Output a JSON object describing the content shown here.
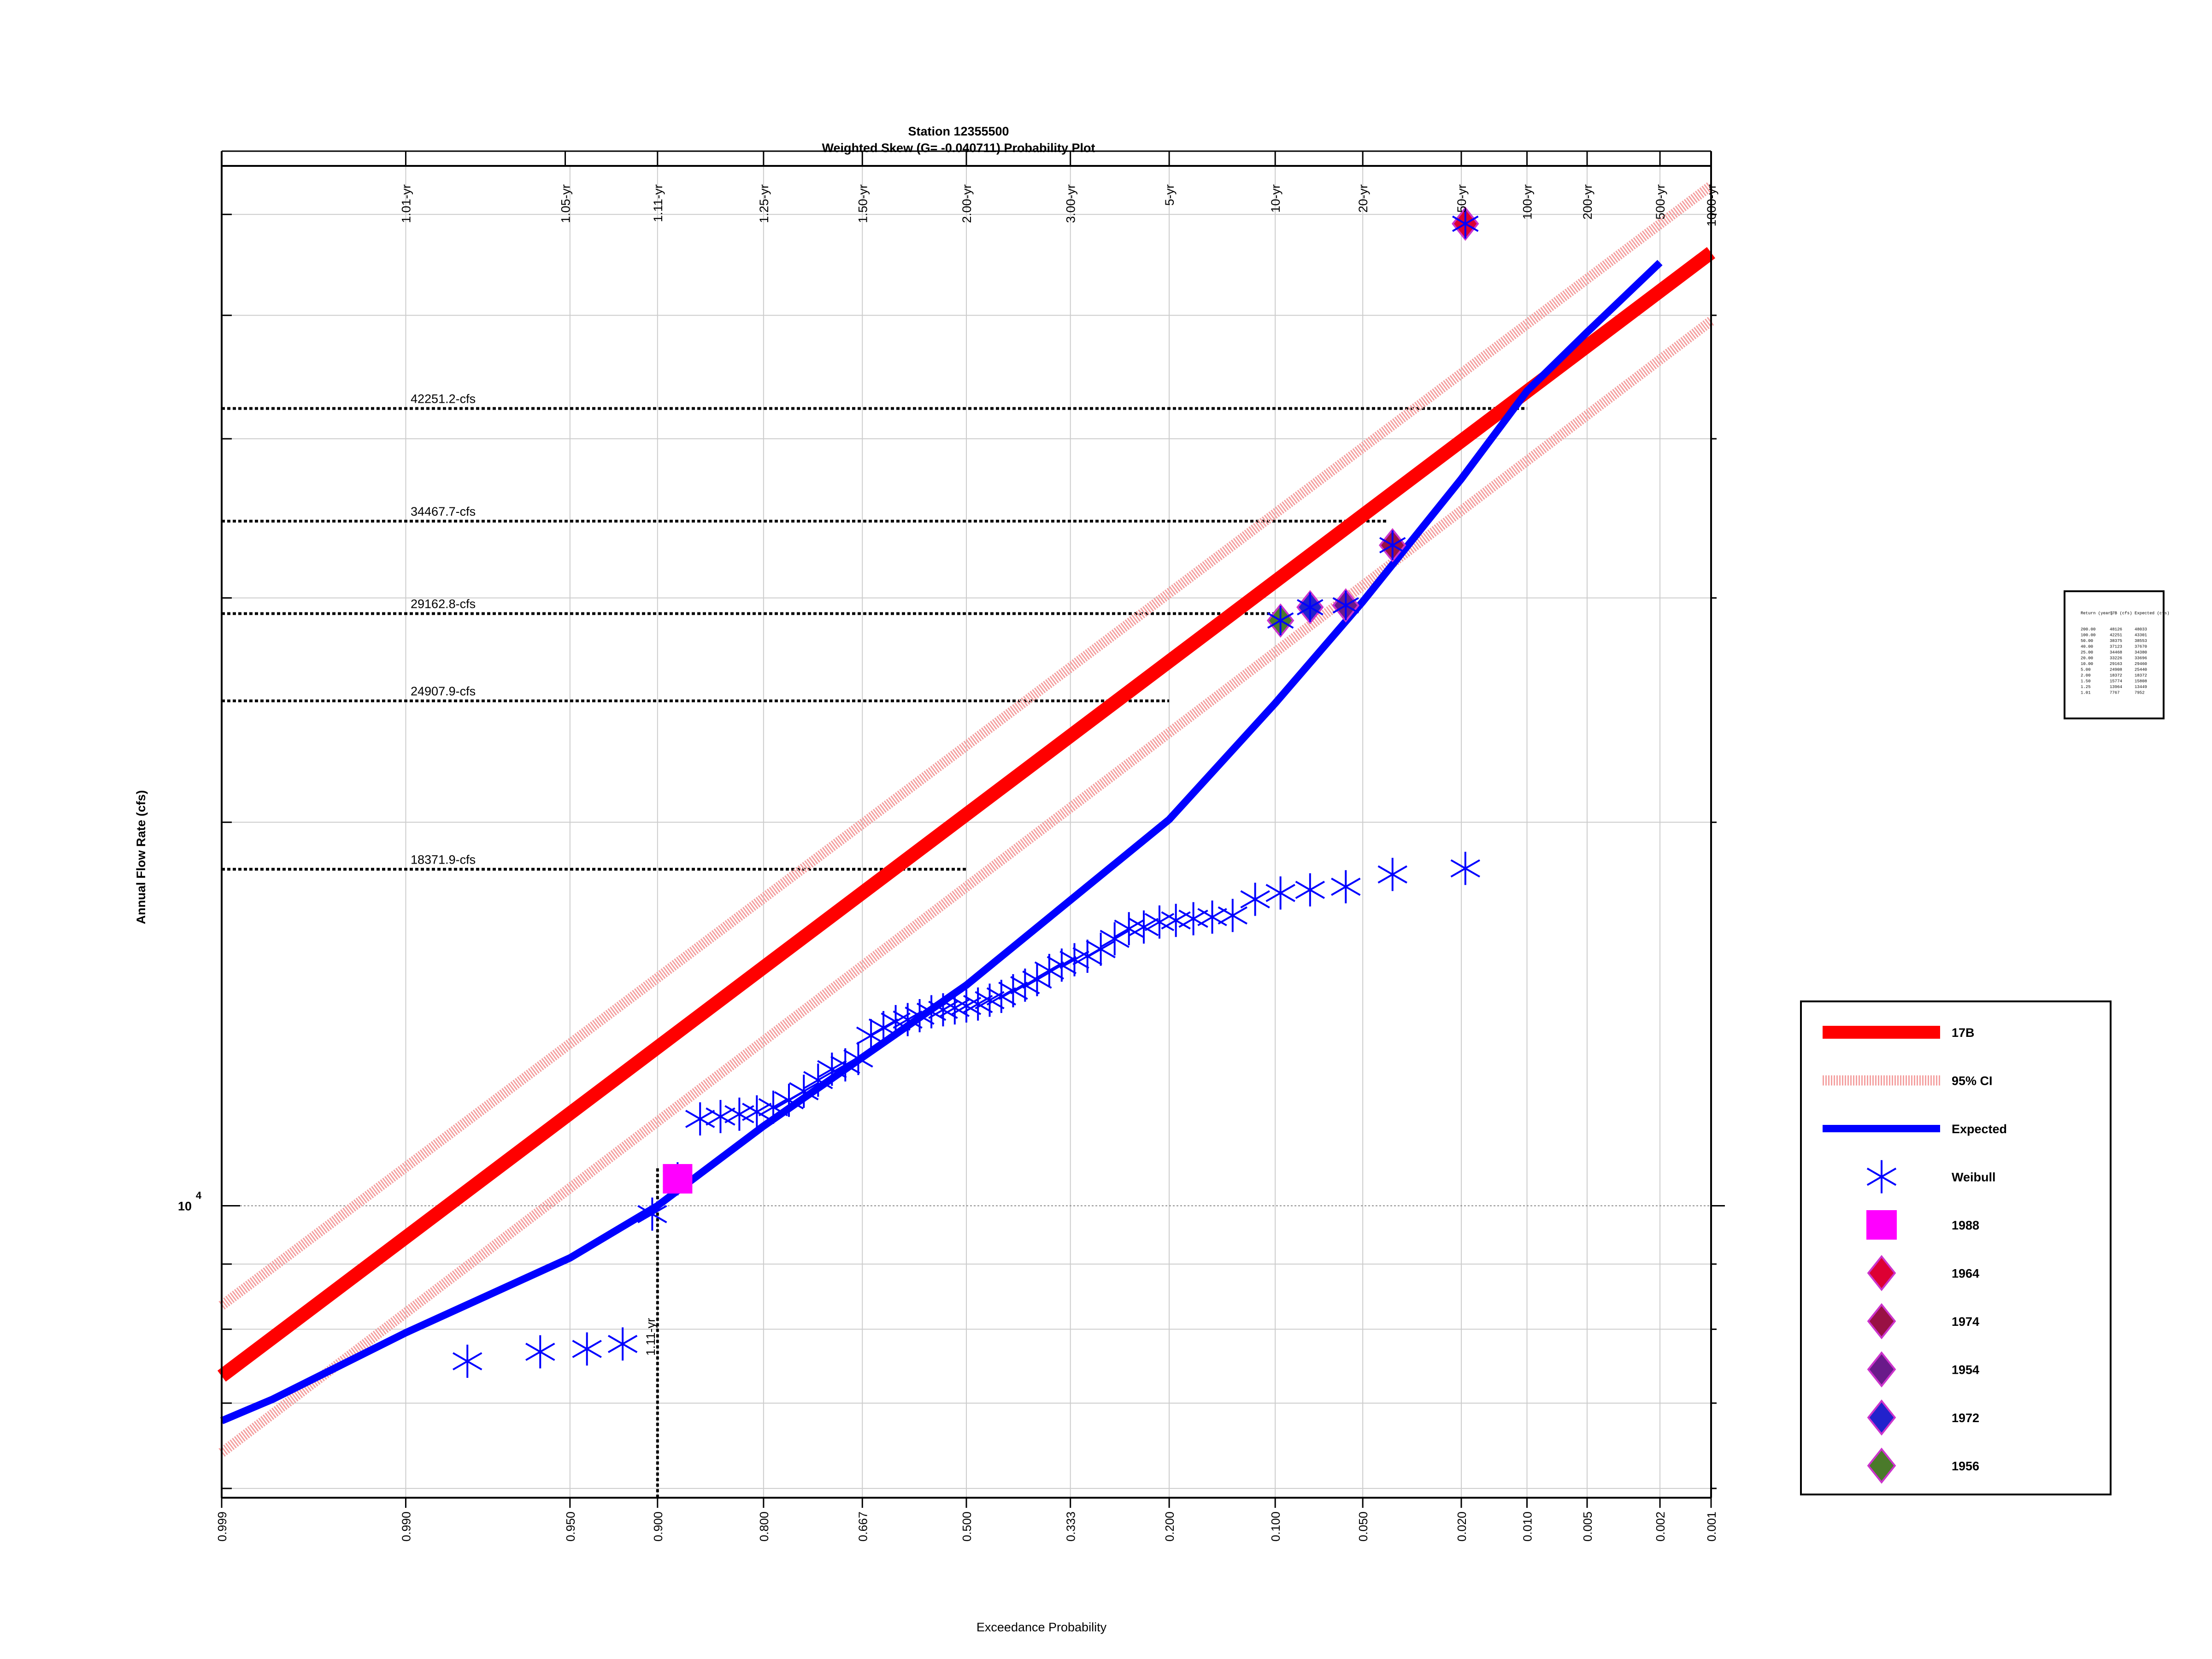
{
  "chart_data": {
    "type": "scatter",
    "title": "Station 12355500",
    "subtitle": "Weighted Skew (G= -0.040711) Probability Plot",
    "xlabel": "Exceedance Probability",
    "ylabel": "Annual Flow Rate (cfs)",
    "x_scale": "normal-probability (reversed)",
    "y_scale": "log",
    "x_range": [
      0.999,
      0.001
    ],
    "y_range": [
      5900,
      65500
    ],
    "grid": true,
    "legend_position": "right",
    "x_tick_labels": [
      "0.999",
      "0.990",
      "0.950",
      "0.900",
      "0.800",
      "0.667",
      "0.500",
      "0.333",
      "0.200",
      "0.100",
      "0.050",
      "0.020",
      "0.010",
      "0.005",
      "0.002",
      "0.001"
    ],
    "y_tick_label": {
      "base": "10",
      "exponent": "4",
      "value": 10000
    },
    "return_period_axis": [
      {
        "label": "1.01-yr",
        "p": 0.99
      },
      {
        "label": "1.05-yr",
        "p": 0.952
      },
      {
        "label": "1.11-yr",
        "p": 0.9
      },
      {
        "label": "1.25-yr",
        "p": 0.8
      },
      {
        "label": "1.50-yr",
        "p": 0.667
      },
      {
        "label": "2.00-yr",
        "p": 0.5
      },
      {
        "label": "3.00-yr",
        "p": 0.333
      },
      {
        "label": "5-yr",
        "p": 0.2
      },
      {
        "label": "10-yr",
        "p": 0.1
      },
      {
        "label": "20-yr",
        "p": 0.05
      },
      {
        "label": "50-yr",
        "p": 0.02
      },
      {
        "label": "100-yr",
        "p": 0.01
      },
      {
        "label": "200-yr",
        "p": 0.005
      },
      {
        "label": "500-yr",
        "p": 0.002
      },
      {
        "label": "1000-yr",
        "p": 0.001
      }
    ],
    "reference_lines": [
      {
        "label": "42251.2-cfs",
        "value": 42251.2,
        "p": 0.01
      },
      {
        "label": "34467.7-cfs",
        "value": 34467.7,
        "p": 0.04
      },
      {
        "label": "29162.8-cfs",
        "value": 29162.8,
        "p": 0.1
      },
      {
        "label": "24907.9-cfs",
        "value": 24907.9,
        "p": 0.2
      },
      {
        "label": "18371.9-cfs",
        "value": 18371.9,
        "p": 0.5
      }
    ],
    "vertical_reference": {
      "label": "1.11-yr",
      "p": 0.9,
      "value": 10700
    },
    "series": [
      {
        "name": "17B",
        "kind": "line",
        "color": "#ff0000",
        "x": [
          0.999,
          0.001
        ],
        "y": [
          7350,
          56000
        ]
      },
      {
        "name": "95% CI",
        "kind": "band",
        "color": "#f4a0a0",
        "upper": {
          "x": [
            0.999,
            0.001
          ],
          "y": [
            8350,
            63200
          ]
        },
        "lower": {
          "x": [
            0.999,
            0.001
          ],
          "y": [
            6400,
            49500
          ]
        }
      },
      {
        "name": "Expected",
        "kind": "line",
        "color": "#0000ff",
        "x": [
          0.999,
          0.998,
          0.99,
          0.95,
          0.9,
          0.8,
          0.5,
          0.2,
          0.1,
          0.05,
          0.02,
          0.01,
          0.005,
          0.002
        ],
        "y": [
          6780,
          7050,
          7950,
          9100,
          10000,
          11550,
          14900,
          20100,
          24800,
          29800,
          37200,
          43600,
          48500,
          55000
        ]
      },
      {
        "name": "Weibull",
        "kind": "points",
        "color": "#0000ff",
        "x": [
          0.9808,
          0.9615,
          0.9423,
          0.9231,
          0.9038,
          0.8846,
          0.8654,
          0.8462,
          0.8269,
          0.8077,
          0.7885,
          0.7692,
          0.75,
          0.7308,
          0.7115,
          0.6923,
          0.6731,
          0.6538,
          0.6346,
          0.6154,
          0.5962,
          0.5769,
          0.5577,
          0.5385,
          0.5192,
          0.5,
          0.4808,
          0.4615,
          0.4423,
          0.4231,
          0.4038,
          0.3846,
          0.3654,
          0.3462,
          0.3269,
          0.3077,
          0.2885,
          0.2692,
          0.25,
          0.2308,
          0.2115,
          0.1923,
          0.1731,
          0.1538,
          0.1346,
          0.1154,
          0.0962,
          0.0769,
          0.0577,
          0.0385,
          0.0192
        ],
        "y": [
          7550,
          7680,
          7720,
          7790,
          9850,
          10500,
          11700,
          11750,
          11800,
          11850,
          11950,
          12100,
          12300,
          12550,
          12800,
          12900,
          13050,
          13600,
          13800,
          13950,
          14000,
          14100,
          14200,
          14250,
          14300,
          14350,
          14400,
          14500,
          14600,
          14750,
          14900,
          15050,
          15300,
          15450,
          15600,
          15700,
          15900,
          16200,
          16500,
          16550,
          16700,
          16750,
          16800,
          16850,
          16900,
          17400,
          17600,
          17700,
          17800,
          18200,
          18400
        ]
      },
      {
        "name": "1988",
        "kind": "marker",
        "marker": "square",
        "color": "#ff00ff",
        "x": [
          0.8846
        ],
        "y": [
          10500
        ]
      },
      {
        "name": "1964",
        "kind": "marker",
        "marker": "diamond",
        "color": "#dd0033",
        "x": [
          0.0192
        ],
        "y": [
          59000
        ]
      },
      {
        "name": "1974",
        "kind": "marker",
        "marker": "diamond",
        "color": "#991144",
        "x": [
          0.0385
        ],
        "y": [
          33000
        ]
      },
      {
        "name": "1954",
        "kind": "marker",
        "marker": "diamond",
        "color": "#6a1a8a",
        "x": [
          0.0577
        ],
        "y": [
          29600
        ]
      },
      {
        "name": "1972",
        "kind": "marker",
        "marker": "diamond",
        "color": "#2222cc",
        "x": [
          0.0769
        ],
        "y": [
          29500
        ]
      },
      {
        "name": "1956",
        "kind": "marker",
        "marker": "diamond",
        "color": "#4a7a2a",
        "x": [
          0.0962
        ],
        "y": [
          28800
        ]
      }
    ]
  },
  "summary_table": {
    "headers": [
      "Return (year)",
      "17B (cfs)",
      "Expected (cfs)"
    ],
    "rows": [
      [
        "200.00",
        "48126",
        "48033"
      ],
      [
        "100.00",
        "42251",
        "43301"
      ],
      [
        "50.00",
        "38375",
        "38553"
      ],
      [
        "40.00",
        "37123",
        "37670"
      ],
      [
        "25.00",
        "34468",
        "34380"
      ],
      [
        "20.00",
        "33226",
        "33696"
      ],
      [
        "10.00",
        "29163",
        "29460"
      ],
      [
        "5.00",
        "24908",
        "25440"
      ],
      [
        "2.00",
        "18372",
        "18372"
      ],
      [
        "1.50",
        "15774",
        "15808"
      ],
      [
        "1.25",
        "13964",
        "13449"
      ],
      [
        "1.01",
        "7767",
        "7952"
      ]
    ]
  }
}
